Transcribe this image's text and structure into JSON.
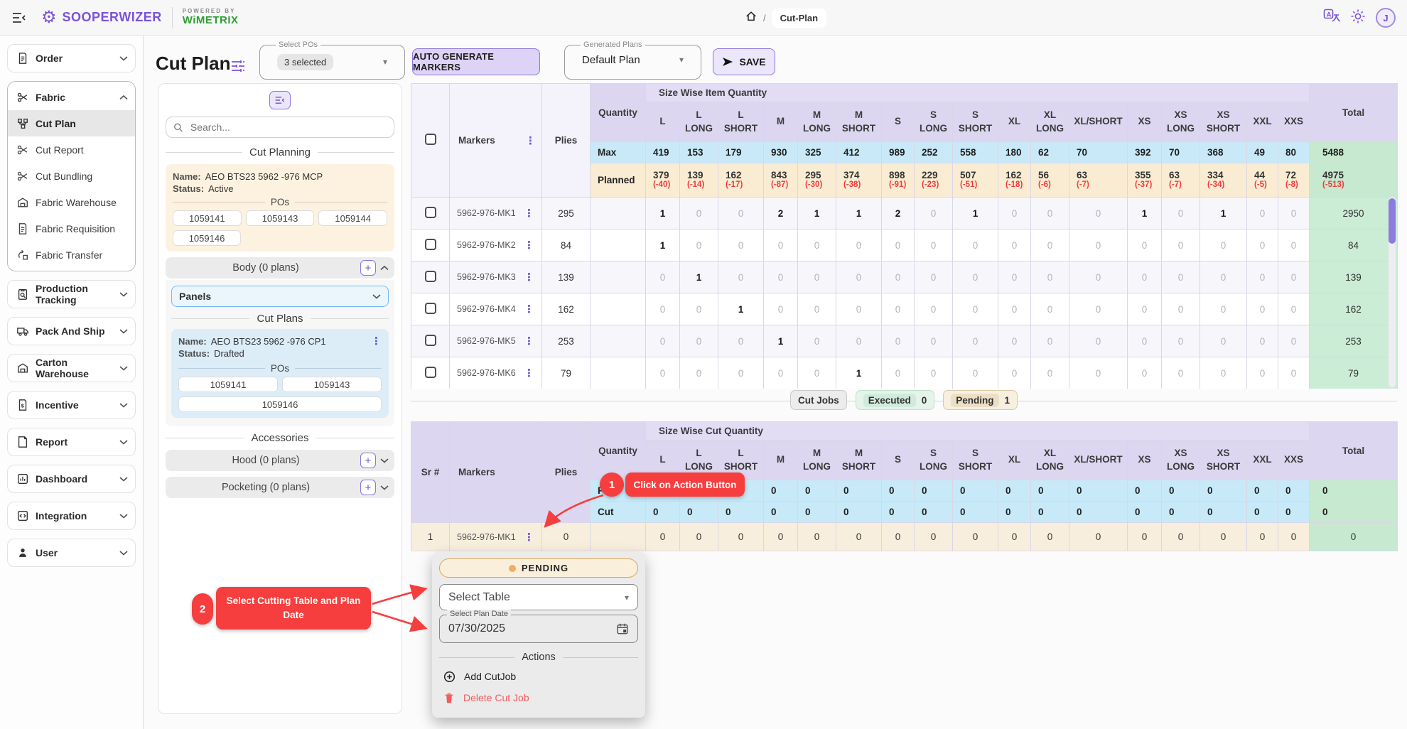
{
  "header": {
    "brand": "SOOPERWIZER",
    "powered_by": "POWERED BY",
    "powered_brand": "WiMETRIX",
    "breadcrumb": {
      "separator": "/",
      "page": "Cut-Plan"
    },
    "avatar_initial": "J"
  },
  "sidebar": {
    "items": [
      {
        "label": "Order"
      },
      {
        "label": "Fabric",
        "children": [
          "Cut Plan",
          "Cut Report",
          "Cut Bundling",
          "Fabric Warehouse",
          "Fabric Requisition",
          "Fabric Transfer"
        ],
        "active_child": "Cut Plan"
      },
      {
        "label": "Production Tracking"
      },
      {
        "label": "Pack And Ship"
      },
      {
        "label": "Carton Warehouse"
      },
      {
        "label": "Incentive"
      },
      {
        "label": "Report"
      },
      {
        "label": "Dashboard"
      },
      {
        "label": "Integration"
      },
      {
        "label": "User"
      }
    ]
  },
  "toolbar": {
    "title": "Cut Plan",
    "select_pos_label": "Select POs",
    "select_pos_value": "3 selected",
    "auto_generate_label": "AUTO GENERATE MARKERS",
    "generated_plans_label": "Generated Plans",
    "generated_plans_value": "Default Plan",
    "save_label": "SAVE"
  },
  "panel": {
    "search_placeholder": "Search...",
    "cut_planning_title": "Cut Planning",
    "plan_card": {
      "name_label": "Name:",
      "name": "AEO BTS23 5962 -976 MCP",
      "status_label": "Status:",
      "status": "Active",
      "pos_title": "POs",
      "pos": [
        "1059141",
        "1059143",
        "1059144",
        "1059146"
      ]
    },
    "body_section_title": "Body (0 plans)",
    "panels_select": "Panels",
    "cut_plans_title": "Cut Plans",
    "cut_plan_card": {
      "name_label": "Name:",
      "name": "AEO BTS23 5962 -976 CP1",
      "status_label": "Status:",
      "status": "Drafted",
      "pos_title": "POs",
      "pos": [
        "1059141",
        "1059143",
        "1059146"
      ]
    },
    "accessories_title": "Accessories",
    "hood_title": "Hood (0 plans)",
    "pocketing_title": "Pocketing (0 plans)"
  },
  "size_columns": [
    "L",
    "L LONG",
    "L SHORT",
    "M",
    "M LONG",
    "M SHORT",
    "S",
    "S LONG",
    "S SHORT",
    "XL",
    "XL LONG",
    "XL/SHORT",
    "XS",
    "XS LONG",
    "XS SHORT",
    "XXL",
    "XXS"
  ],
  "table1": {
    "group_header": "Size Wise Item Quantity",
    "markers_label": "Markers",
    "plies_label": "Plies",
    "quantity_label": "Quantity",
    "total_label": "Total",
    "summary": [
      {
        "label": "Max",
        "cls": "max",
        "values": [
          419,
          153,
          179,
          930,
          325,
          412,
          989,
          252,
          558,
          180,
          62,
          70,
          392,
          70,
          368,
          49,
          80
        ],
        "total": "5488"
      },
      {
        "label": "Planned",
        "cls": "planned",
        "values": [
          379,
          139,
          162,
          843,
          295,
          374,
          898,
          229,
          507,
          162,
          56,
          63,
          355,
          63,
          334,
          44,
          72
        ],
        "deltas": [
          "(-40)",
          "(-14)",
          "(-17)",
          "(-87)",
          "(-30)",
          "(-38)",
          "(-91)",
          "(-23)",
          "(-51)",
          "(-18)",
          "(-6)",
          "(-7)",
          "(-37)",
          "(-7)",
          "(-34)",
          "(-5)",
          "(-8)"
        ],
        "total": "4975",
        "total_delta": "(-513)"
      }
    ],
    "rows": [
      {
        "name": "5962-976-MK1",
        "plies": "295",
        "values": [
          1,
          0,
          0,
          2,
          1,
          1,
          2,
          0,
          1,
          0,
          0,
          0,
          1,
          0,
          1,
          0,
          0
        ],
        "total": "2950"
      },
      {
        "name": "5962-976-MK2",
        "plies": "84",
        "values": [
          1,
          0,
          0,
          0,
          0,
          0,
          0,
          0,
          0,
          0,
          0,
          0,
          0,
          0,
          0,
          0,
          0
        ],
        "total": "84"
      },
      {
        "name": "5962-976-MK3",
        "plies": "139",
        "values": [
          0,
          1,
          0,
          0,
          0,
          0,
          0,
          0,
          0,
          0,
          0,
          0,
          0,
          0,
          0,
          0,
          0
        ],
        "total": "139"
      },
      {
        "name": "5962-976-MK4",
        "plies": "162",
        "values": [
          0,
          0,
          1,
          0,
          0,
          0,
          0,
          0,
          0,
          0,
          0,
          0,
          0,
          0,
          0,
          0,
          0
        ],
        "total": "162"
      },
      {
        "name": "5962-976-MK5",
        "plies": "253",
        "values": [
          0,
          0,
          0,
          1,
          0,
          0,
          0,
          0,
          0,
          0,
          0,
          0,
          0,
          0,
          0,
          0,
          0
        ],
        "total": "253"
      },
      {
        "name": "5962-976-MK6",
        "plies": "79",
        "values": [
          0,
          0,
          0,
          0,
          0,
          1,
          0,
          0,
          0,
          0,
          0,
          0,
          0,
          0,
          0,
          0,
          0
        ],
        "total": "79"
      }
    ]
  },
  "cutjobs": {
    "title": "Cut Jobs",
    "executed_label": "Executed",
    "executed_count": "0",
    "pending_label": "Pending",
    "pending_count": "1"
  },
  "table2": {
    "group_header": "Size Wise Cut Quantity",
    "sr_label": "Sr #",
    "markers_label": "Markers",
    "plies_label": "Plies",
    "quantity_label": "Quantity",
    "total_label": "Total",
    "summary": [
      {
        "label": "Plan",
        "cls": "cutrow",
        "values": [
          0,
          0,
          0,
          0,
          0,
          0,
          0,
          0,
          0,
          0,
          0,
          0,
          0,
          0,
          0,
          0,
          0
        ],
        "total": "0"
      },
      {
        "label": "Cut",
        "cls": "cutrow",
        "values": [
          0,
          0,
          0,
          0,
          0,
          0,
          0,
          0,
          0,
          0,
          0,
          0,
          0,
          0,
          0,
          0,
          0
        ],
        "total": "0"
      }
    ],
    "rows": [
      {
        "sr": "1",
        "name": "5962-976-MK1",
        "plies": "0",
        "values": [
          0,
          0,
          0,
          0,
          0,
          0,
          0,
          0,
          0,
          0,
          0,
          0,
          0,
          0,
          0,
          0,
          0
        ],
        "total": "0"
      }
    ]
  },
  "action_menu": {
    "status": "PENDING",
    "select_table_placeholder": "Select Table",
    "date_label": "Select Plan Date",
    "date_value": "07/30/2025",
    "actions_title": "Actions",
    "add_label": "Add CutJob",
    "delete_label": "Delete Cut Job"
  },
  "annotations": [
    {
      "step": "1",
      "text": "Click on Action Button"
    },
    {
      "step": "2",
      "text": "Select Cutting Table and Plan Date"
    }
  ],
  "icons": {
    "dots_vertical": "⋮",
    "dropdown_arrow": "▾",
    "plus": "+"
  },
  "colors": {
    "accent_purple": "#7a52d9",
    "brand_green": "#2f9e33",
    "annotation_red": "#f63e3e",
    "max_row_blue": "#c9e9f8",
    "planned_row_beige": "#faecd3",
    "total_green": "#c6e9cf",
    "header_lavender": "#ddd6f1",
    "negative_red": "#f23b3b"
  }
}
